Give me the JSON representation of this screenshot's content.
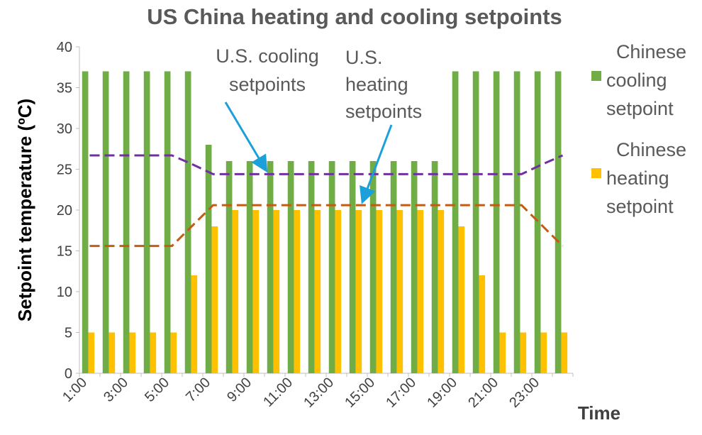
{
  "chart_data": {
    "type": "bar",
    "title": "US China heating and cooling setpoints",
    "xlabel": "Time",
    "ylabel": "Setpoint temperature (ºC)",
    "ylim": [
      0,
      40
    ],
    "yticks": [
      0,
      5,
      10,
      15,
      20,
      25,
      30,
      35,
      40
    ],
    "grid": false,
    "legend_position": "right",
    "categories": [
      "1:00",
      "2:00",
      "3:00",
      "4:00",
      "5:00",
      "6:00",
      "7:00",
      "8:00",
      "9:00",
      "10:00",
      "11:00",
      "12:00",
      "13:00",
      "14:00",
      "15:00",
      "16:00",
      "17:00",
      "18:00",
      "19:00",
      "20:00",
      "21:00",
      "22:00",
      "23:00",
      "24:00"
    ],
    "tick_labels": [
      "1:00",
      "3:00",
      "5:00",
      "7:00",
      "9:00",
      "11:00",
      "13:00",
      "15:00",
      "17:00",
      "19:00",
      "21:00",
      "23:00"
    ],
    "series": [
      {
        "name": "Chinese cooling setpoint",
        "legend_lines": [
          "Chinese",
          "cooling",
          "setpoint"
        ],
        "kind": "bar",
        "color": "#70AD47",
        "values": [
          37,
          37,
          37,
          37,
          37,
          37,
          28,
          26,
          26,
          26,
          26,
          26,
          26,
          26,
          26,
          26,
          26,
          26,
          37,
          37,
          37,
          37,
          37,
          37
        ]
      },
      {
        "name": "Chinese heating setpoint",
        "legend_lines": [
          "Chinese",
          "heating",
          "setpoint"
        ],
        "kind": "bar",
        "color": "#FFC000",
        "values": [
          5,
          5,
          5,
          5,
          5,
          12,
          18,
          20,
          20,
          20,
          20,
          20,
          20,
          20,
          20,
          20,
          20,
          20,
          18,
          12,
          5,
          5,
          5,
          5
        ]
      },
      {
        "kind": "dashed-line",
        "color": "#7030A0",
        "values": [
          26.7,
          26.7,
          26.7,
          26.7,
          26.7,
          25.6,
          24.4,
          24.4,
          24.4,
          24.4,
          24.4,
          24.4,
          24.4,
          24.4,
          24.4,
          24.4,
          24.4,
          24.4,
          24.4,
          24.4,
          24.4,
          24.4,
          25.6,
          26.7
        ]
      },
      {
        "kind": "dashed-line",
        "color": "#C55A11",
        "values": [
          15.6,
          15.6,
          15.6,
          15.6,
          15.6,
          18.1,
          20.6,
          20.6,
          20.6,
          20.6,
          20.6,
          20.6,
          20.6,
          20.6,
          20.6,
          20.6,
          20.6,
          20.6,
          20.6,
          20.6,
          20.6,
          20.6,
          18.1,
          15.6
        ]
      }
    ],
    "annotations": [
      {
        "lines": [
          "U.S. cooling",
          "setpoints"
        ],
        "points_to_series": 2,
        "points_to_index": 9
      },
      {
        "lines": [
          "U.S.",
          "heating",
          "setpoints"
        ],
        "points_to_series": 3,
        "points_to_index": 14
      }
    ],
    "arrow_color": "#1CA0DA"
  }
}
